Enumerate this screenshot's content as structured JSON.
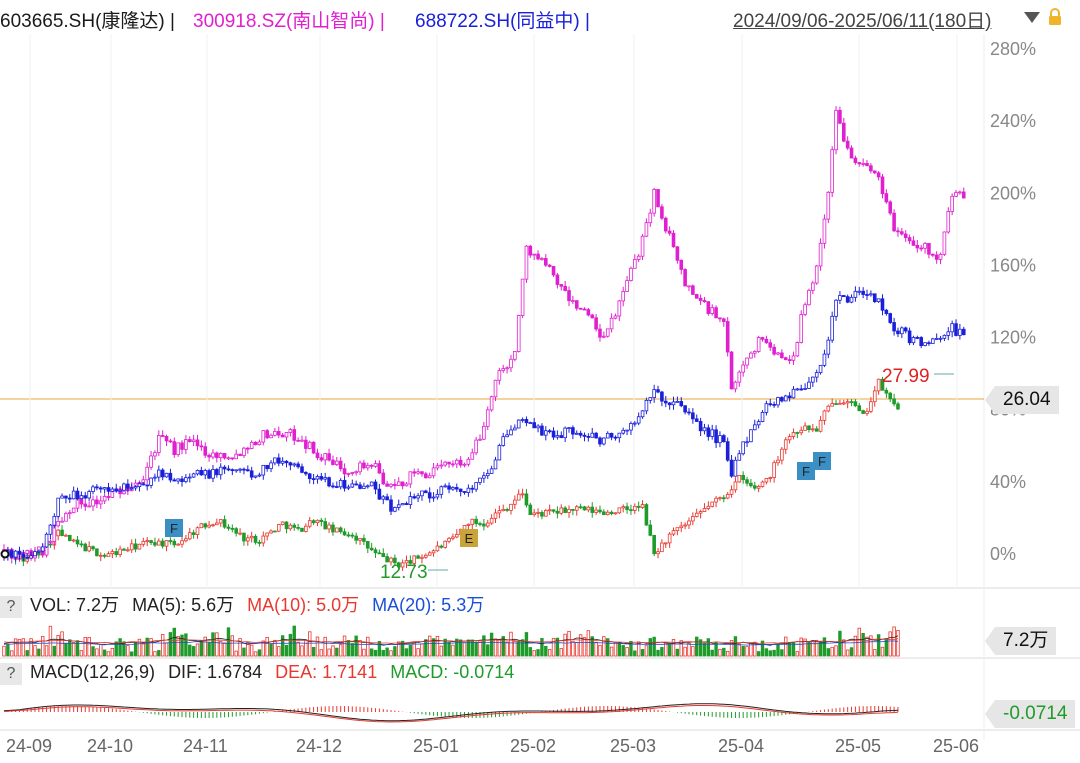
{
  "header": {
    "stocks": [
      {
        "text": "603665.SH(康隆达) |",
        "color": "#1a1a1a"
      },
      {
        "text": "300918.SZ(南山智尚) |",
        "color": "#e020d0"
      },
      {
        "text": "688722.SH(同益中) |",
        "color": "#1a20d8"
      }
    ],
    "date_range": "2024/09/06-2025/06/11(180日)"
  },
  "colors": {
    "up": "#e8382f",
    "down": "#1f9b2a",
    "s2": "#e020d0",
    "s3": "#1a20d8",
    "hline": "#e8a33b"
  },
  "price_panel": {
    "y_ticks": [
      "280%",
      "240%",
      "200%",
      "160%",
      "120%",
      "80%",
      "40%",
      "0%"
    ],
    "price_tag": "26.04",
    "high_label": "27.99",
    "low_label": "12.73",
    "markers": [
      "F",
      "E",
      "F",
      "F"
    ]
  },
  "volume_panel": {
    "question": "?",
    "vol_label": "VOL: 7.2万",
    "ma5_label": "MA(5): 5.6万",
    "ma10_label": "MA(10): 5.0万",
    "ma20_label": "MA(20): 5.3万",
    "tag": "7.2万"
  },
  "macd_panel": {
    "question": "?",
    "title_label": "MACD(12,26,9)",
    "dif_label": "DIF: 1.6784",
    "dea_label": "DEA: 1.7141",
    "macd_label": "MACD: -0.0714",
    "tag": "-0.0714"
  },
  "x_ticks": [
    "24-09",
    "24-10",
    "24-11",
    "24-12",
    "25-01",
    "25-02",
    "25-03",
    "25-04",
    "25-05",
    "25-06"
  ],
  "chart_data": {
    "type": "line",
    "y_unit": "% change from 2024/09/06",
    "ylim": [
      -5,
      285
    ],
    "series": [
      {
        "name": "603665.SH(康隆达)",
        "anchors": [
          [
            0,
            0
          ],
          [
            5,
            -3
          ],
          [
            10,
            2
          ],
          [
            14,
            12
          ],
          [
            18,
            6
          ],
          [
            26,
            -1
          ],
          [
            32,
            3
          ],
          [
            38,
            7
          ],
          [
            44,
            5
          ],
          [
            50,
            14
          ],
          [
            55,
            19
          ],
          [
            62,
            9
          ],
          [
            66,
            8
          ],
          [
            72,
            17
          ],
          [
            76,
            13
          ],
          [
            80,
            19
          ],
          [
            85,
            13
          ],
          [
            90,
            11
          ],
          [
            96,
            0
          ],
          [
            102,
            -6
          ],
          [
            106,
            -3
          ],
          [
            110,
            1
          ],
          [
            116,
            8
          ],
          [
            120,
            18
          ],
          [
            124,
            17
          ],
          [
            126,
            21
          ],
          [
            130,
            26
          ],
          [
            134,
            34
          ],
          [
            136,
            22
          ],
          [
            142,
            23
          ],
          [
            148,
            25
          ],
          [
            155,
            23
          ],
          [
            165,
            26
          ],
          [
            168,
            0
          ],
          [
            172,
            10
          ],
          [
            178,
            19
          ],
          [
            182,
            27
          ],
          [
            186,
            32
          ],
          [
            190,
            42
          ],
          [
            194,
            36
          ],
          [
            198,
            44
          ],
          [
            202,
            64
          ],
          [
            206,
            70
          ],
          [
            210,
            69
          ],
          [
            212,
            78
          ],
          [
            215,
            85
          ],
          [
            218,
            86
          ],
          [
            222,
            76
          ],
          [
            226,
            95
          ],
          [
            229,
            85
          ],
          [
            231,
            82
          ]
        ]
      },
      {
        "name": "300918.SZ(南山智尚)",
        "anchors": [
          [
            0,
            0
          ],
          [
            5,
            -1
          ],
          [
            10,
            2
          ],
          [
            14,
            18
          ],
          [
            18,
            28
          ],
          [
            24,
            29
          ],
          [
            30,
            35
          ],
          [
            36,
            44
          ],
          [
            40,
            64
          ],
          [
            44,
            58
          ],
          [
            48,
            62
          ],
          [
            54,
            55
          ],
          [
            60,
            55
          ],
          [
            64,
            62
          ],
          [
            68,
            67
          ],
          [
            72,
            67
          ],
          [
            76,
            65
          ],
          [
            82,
            54
          ],
          [
            88,
            47
          ],
          [
            95,
            50
          ],
          [
            100,
            36
          ],
          [
            106,
            44
          ],
          [
            112,
            46
          ],
          [
            116,
            52
          ],
          [
            120,
            51
          ],
          [
            124,
            70
          ],
          [
            126,
            90
          ],
          [
            128,
            100
          ],
          [
            132,
            112
          ],
          [
            135,
            170
          ],
          [
            140,
            160
          ],
          [
            146,
            141
          ],
          [
            150,
            135
          ],
          [
            155,
            118
          ],
          [
            160,
            145
          ],
          [
            164,
            168
          ],
          [
            168,
            200
          ],
          [
            172,
            175
          ],
          [
            176,
            150
          ],
          [
            180,
            140
          ],
          [
            186,
            128
          ],
          [
            188,
            90
          ],
          [
            192,
            110
          ],
          [
            196,
            120
          ],
          [
            200,
            110
          ],
          [
            204,
            110
          ],
          [
            206,
            130
          ],
          [
            210,
            160
          ],
          [
            213,
            200
          ],
          [
            215,
            245
          ],
          [
            218,
            225
          ],
          [
            222,
            215
          ],
          [
            226,
            210
          ],
          [
            230,
            180
          ],
          [
            234,
            175
          ],
          [
            238,
            170
          ],
          [
            242,
            165
          ],
          [
            245,
            200
          ],
          [
            248,
            197
          ]
        ]
      },
      {
        "name": "688722.SH(同益中)",
        "anchors": [
          [
            0,
            0
          ],
          [
            5,
            -1
          ],
          [
            10,
            3
          ],
          [
            14,
            28
          ],
          [
            18,
            33
          ],
          [
            24,
            35
          ],
          [
            30,
            37
          ],
          [
            36,
            37
          ],
          [
            40,
            46
          ],
          [
            44,
            43
          ],
          [
            48,
            43
          ],
          [
            54,
            45
          ],
          [
            60,
            47
          ],
          [
            64,
            44
          ],
          [
            68,
            49
          ],
          [
            72,
            52
          ],
          [
            76,
            49
          ],
          [
            82,
            40
          ],
          [
            88,
            39
          ],
          [
            95,
            37
          ],
          [
            100,
            25
          ],
          [
            106,
            33
          ],
          [
            112,
            34
          ],
          [
            116,
            37
          ],
          [
            120,
            35
          ],
          [
            124,
            45
          ],
          [
            126,
            50
          ],
          [
            128,
            60
          ],
          [
            132,
            70
          ],
          [
            135,
            75
          ],
          [
            140,
            66
          ],
          [
            146,
            68
          ],
          [
            150,
            66
          ],
          [
            155,
            63
          ],
          [
            160,
            68
          ],
          [
            164,
            75
          ],
          [
            168,
            90
          ],
          [
            172,
            84
          ],
          [
            176,
            80
          ],
          [
            180,
            70
          ],
          [
            186,
            62
          ],
          [
            188,
            45
          ],
          [
            192,
            65
          ],
          [
            196,
            80
          ],
          [
            200,
            86
          ],
          [
            204,
            90
          ],
          [
            206,
            92
          ],
          [
            210,
            100
          ],
          [
            213,
            120
          ],
          [
            215,
            140
          ],
          [
            218,
            142
          ],
          [
            222,
            145
          ],
          [
            226,
            140
          ],
          [
            230,
            125
          ],
          [
            234,
            120
          ],
          [
            238,
            118
          ],
          [
            242,
            117
          ],
          [
            245,
            125
          ],
          [
            248,
            120
          ]
        ]
      }
    ]
  }
}
